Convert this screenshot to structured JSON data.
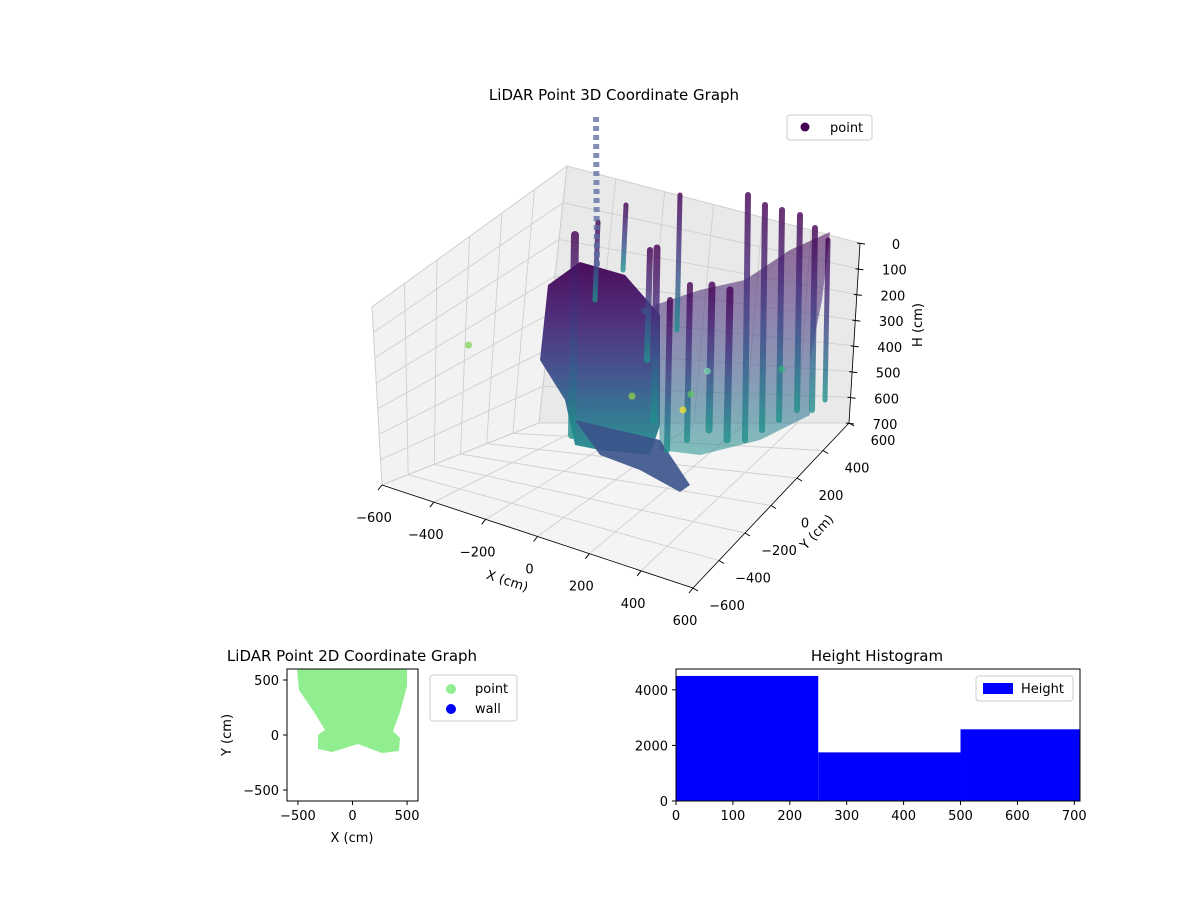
{
  "chart_data": [
    {
      "type": "scatter",
      "projection": "3d",
      "title": "LiDAR Point 3D Coordinate Graph",
      "xlabel": "X (cm)",
      "ylabel": "Y (cm)",
      "zlabel": "H (cm)",
      "xlim": [
        -600,
        600
      ],
      "ylim": [
        -600,
        600
      ],
      "zlim": [
        0,
        700
      ],
      "z_inverted": true,
      "x_ticks": [
        "−600",
        "−400",
        "−200",
        "0",
        "200",
        "400",
        "600"
      ],
      "y_ticks": [
        "−600",
        "−400",
        "−200",
        "0",
        "200",
        "400",
        "600"
      ],
      "z_ticks": [
        "0",
        "100",
        "200",
        "300",
        "400",
        "500",
        "600",
        "700"
      ],
      "colormap": "viridis",
      "series": [
        {
          "name": "point"
        }
      ],
      "legend": "top-right",
      "grid": true,
      "outlier_points": [
        {
          "x": -250,
          "y": -560,
          "h": 40
        },
        {
          "x": 450,
          "y": -250,
          "h": 60
        },
        {
          "x": 600,
          "y": -600,
          "h": 0
        },
        {
          "x": 350,
          "y": -500,
          "h": 50
        },
        {
          "x": 550,
          "y": 250,
          "h": 30
        },
        {
          "x": -120,
          "y": 520,
          "h": 80
        },
        {
          "x": 100,
          "y": 550,
          "h": 250
        }
      ]
    },
    {
      "type": "scatter",
      "title": "LiDAR Point 2D Coordinate Graph",
      "xlabel": "X (cm)",
      "ylabel": "Y (cm)",
      "xlim": [
        -600,
        600
      ],
      "ylim": [
        -600,
        600
      ],
      "x_ticks": [
        "−500",
        "0",
        "500"
      ],
      "y_ticks": [
        "−500",
        "0",
        "500"
      ],
      "series": [
        {
          "name": "point",
          "color": "#90ee90"
        },
        {
          "name": "wall",
          "color": "#0000ff"
        }
      ],
      "legend": "outside-right"
    },
    {
      "type": "bar",
      "title": "Height Histogram",
      "bins": [
        [
          0,
          250
        ],
        [
          250,
          500
        ],
        [
          500,
          710
        ]
      ],
      "values": [
        4500,
        1750,
        2580
      ],
      "xlim": [
        0,
        710
      ],
      "ylim": [
        0,
        4750
      ],
      "x_ticks": [
        "0",
        "100",
        "200",
        "300",
        "400",
        "500",
        "600",
        "700"
      ],
      "y_ticks": [
        "0",
        "2000",
        "4000"
      ],
      "series": [
        {
          "name": "Height",
          "color": "#0000ff"
        }
      ],
      "legend": "top-right"
    }
  ]
}
